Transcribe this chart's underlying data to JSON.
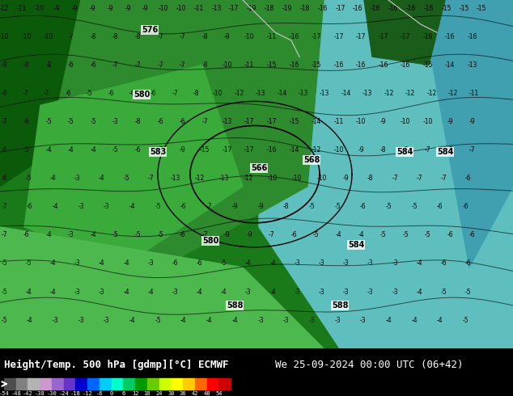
{
  "title_left": "Height/Temp. 500 hPa [gdmp][°C] ECMWF",
  "title_right": "We 25-09-2024 00:00 UTC (06+42)",
  "colorbar_values": [
    -54,
    -48,
    -42,
    -38,
    -30,
    -24,
    -18,
    -12,
    -6,
    0,
    6,
    12,
    18,
    24,
    30,
    36,
    42,
    48,
    54
  ],
  "colorbar_colors": [
    "#4d4d4d",
    "#808080",
    "#b3b3b3",
    "#cc99cc",
    "#9966cc",
    "#6633cc",
    "#0000cc",
    "#0066ff",
    "#00ccff",
    "#00ffcc",
    "#00cc66",
    "#009900",
    "#66cc00",
    "#ccff00",
    "#ffff00",
    "#ffcc00",
    "#ff6600",
    "#ff0000",
    "#cc0000"
  ],
  "background_color": "#006600",
  "fig_width": 6.34,
  "fig_height": 4.9,
  "dpi": 100
}
